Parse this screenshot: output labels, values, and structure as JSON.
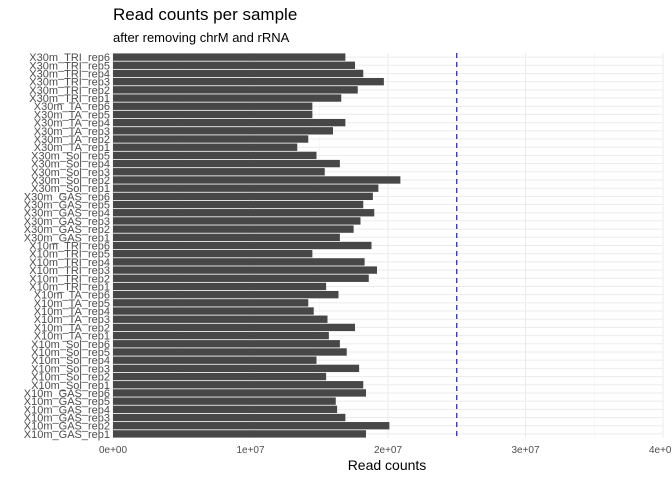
{
  "chart_data": {
    "type": "bar",
    "orientation": "horizontal",
    "title": "Read counts per sample",
    "subtitle": "after removing chrM and rRNA",
    "xlabel": "Read counts",
    "ylabel": "",
    "xlim": [
      0,
      40000000
    ],
    "xticks": [
      0,
      10000000,
      20000000,
      30000000,
      40000000
    ],
    "xtick_labels": [
      "0e+00",
      "1e+07",
      "2e+07",
      "3e+07",
      "4e+07"
    ],
    "grid": true,
    "bar_color": "#474747",
    "reference_line": {
      "value": 25000000,
      "color": "#1a1acc",
      "style": "dashed"
    },
    "categories": [
      "X10m_GAS_rep1",
      "X10m_GAS_rep2",
      "X10m_GAS_rep3",
      "X10m_GAS_rep4",
      "X10m_GAS_rep5",
      "X10m_GAS_rep6",
      "X10m_Sol_rep1",
      "X10m_Sol_rep2",
      "X10m_Sol_rep3",
      "X10m_Sol_rep4",
      "X10m_Sol_rep5",
      "X10m_Sol_rep6",
      "X10m_TA_rep1",
      "X10m_TA_rep2",
      "X10m_TA_rep3",
      "X10m_TA_rep4",
      "X10m_TA_rep5",
      "X10m_TA_rep6",
      "X10m_TRI_rep1",
      "X10m_TRI_rep2",
      "X10m_TRI_rep3",
      "X10m_TRI_rep4",
      "X10m_TRI_rep5",
      "X10m_TRI_rep6",
      "X30m_GAS_rep1",
      "X30m_GAS_rep2",
      "X30m_GAS_rep3",
      "X30m_GAS_rep4",
      "X30m_GAS_rep5",
      "X30m_GAS_rep6",
      "X30m_Sol_rep1",
      "X30m_Sol_rep2",
      "X30m_Sol_rep3",
      "X30m_Sol_rep4",
      "X30m_Sol_rep5",
      "X30m_TA_rep1",
      "X30m_TA_rep2",
      "X30m_TA_rep3",
      "X30m_TA_rep4",
      "X30m_TA_rep5",
      "X30m_TA_rep6",
      "X30m_TRI_rep1",
      "X30m_TRI_rep2",
      "X30m_TRI_rep3",
      "X30m_TRI_rep4",
      "X30m_TRI_rep5",
      "X30m_TRI_rep6"
    ],
    "values": [
      18400000,
      20100000,
      16900000,
      16300000,
      16200000,
      18400000,
      18200000,
      15500000,
      17900000,
      14800000,
      17000000,
      16500000,
      15700000,
      17600000,
      15600000,
      14600000,
      14200000,
      16400000,
      15500000,
      18600000,
      19200000,
      18300000,
      14500000,
      18800000,
      16500000,
      17500000,
      18000000,
      19000000,
      18200000,
      18900000,
      19300000,
      20900000,
      15400000,
      16500000,
      14800000,
      13400000,
      14200000,
      16000000,
      16900000,
      14500000,
      14500000,
      16600000,
      17800000,
      19700000,
      18200000,
      17600000,
      16900000
    ]
  }
}
